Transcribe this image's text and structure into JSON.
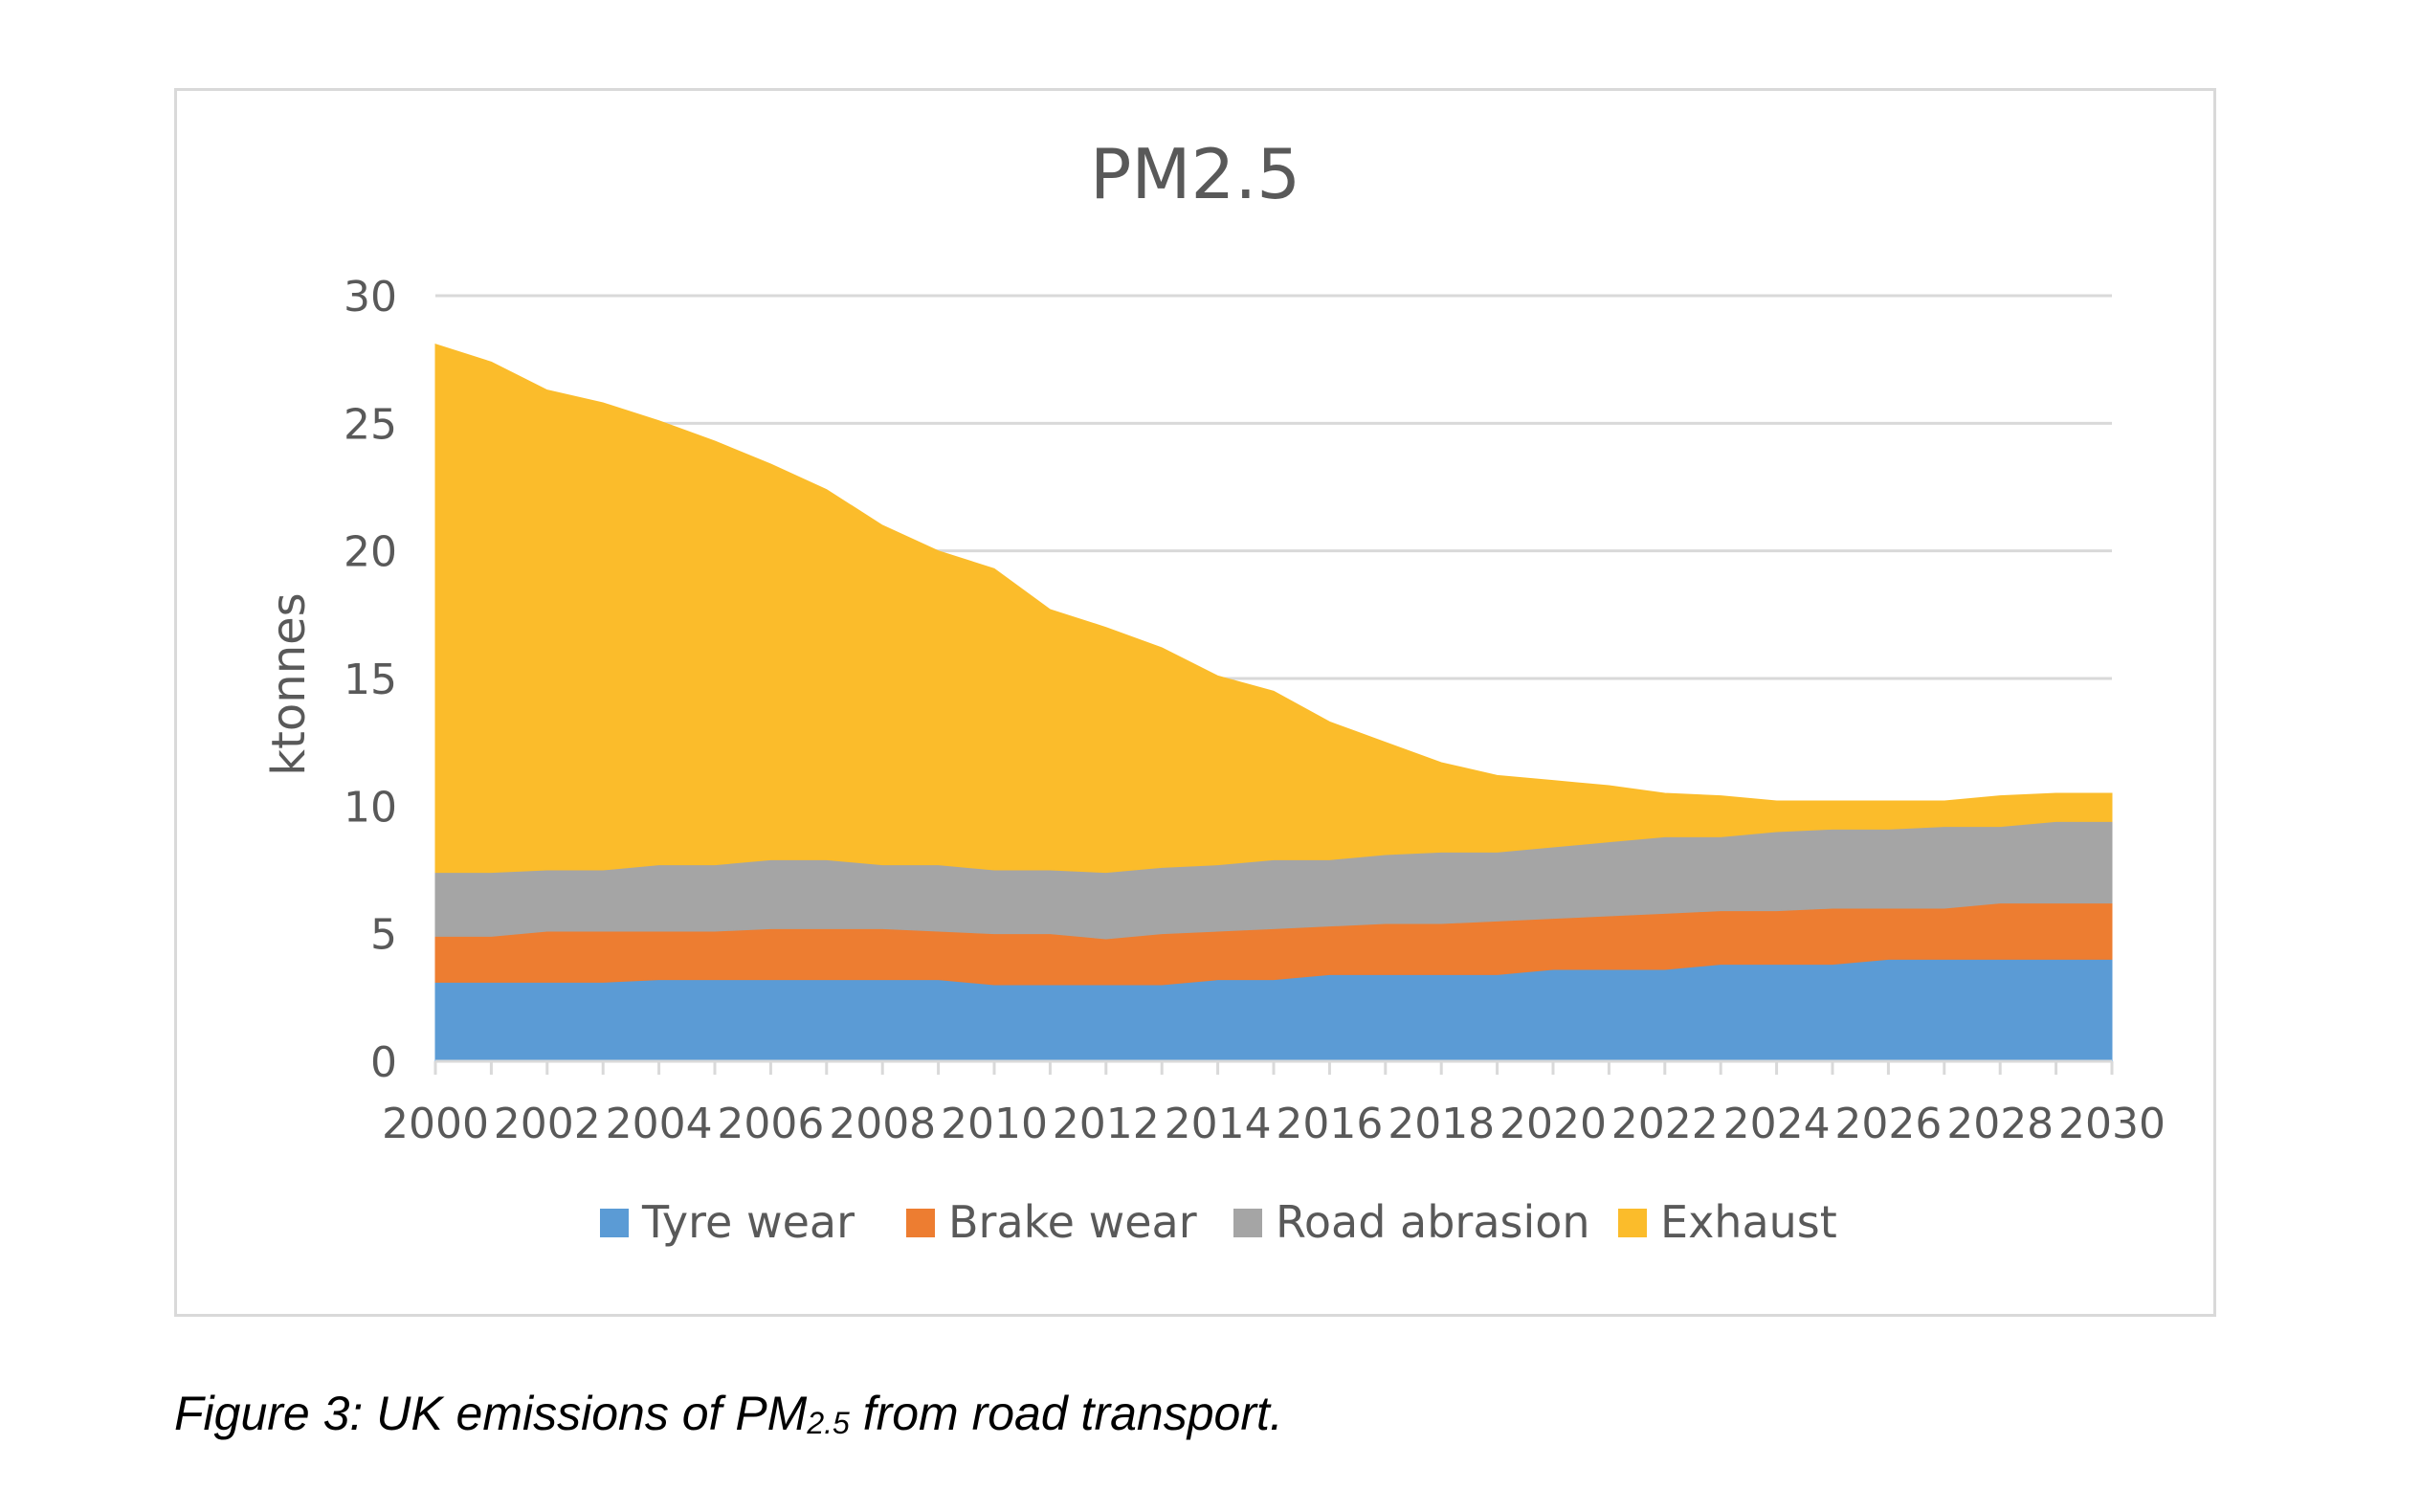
{
  "caption": {
    "prefix": "Figure 3: UK emissions of PM",
    "subscript": "2.5",
    "suffix": " from road transport."
  },
  "chart_data": {
    "type": "area",
    "stacked": true,
    "title": "PM2.5",
    "xlabel": "",
    "ylabel": "ktonnes",
    "ylim": [
      0,
      30
    ],
    "yticks": [
      0,
      5,
      10,
      15,
      20,
      25,
      30
    ],
    "xticks": [
      2000,
      2002,
      2004,
      2006,
      2008,
      2010,
      2012,
      2014,
      2016,
      2018,
      2020,
      2022,
      2024,
      2026,
      2028,
      2030
    ],
    "grid": true,
    "legend_position": "bottom",
    "x": [
      2000,
      2001,
      2002,
      2003,
      2004,
      2005,
      2006,
      2007,
      2008,
      2009,
      2010,
      2011,
      2012,
      2013,
      2014,
      2015,
      2016,
      2017,
      2018,
      2019,
      2020,
      2021,
      2022,
      2023,
      2024,
      2025,
      2026,
      2027,
      2028,
      2029,
      2030
    ],
    "series": [
      {
        "name": "Tyre wear",
        "color": "#5b9bd5",
        "values": [
          3.1,
          3.1,
          3.1,
          3.1,
          3.2,
          3.2,
          3.2,
          3.2,
          3.2,
          3.2,
          3.0,
          3.0,
          3.0,
          3.0,
          3.2,
          3.2,
          3.4,
          3.4,
          3.4,
          3.4,
          3.6,
          3.6,
          3.6,
          3.8,
          3.8,
          3.8,
          4.0,
          4.0,
          4.0,
          4.0,
          4.0
        ]
      },
      {
        "name": "Brake wear",
        "color": "#ed7d31",
        "values": [
          1.8,
          1.8,
          2.0,
          2.0,
          1.9,
          1.9,
          2.0,
          2.0,
          2.0,
          1.9,
          2.0,
          2.0,
          1.8,
          2.0,
          1.9,
          2.0,
          1.9,
          2.0,
          2.0,
          2.1,
          2.0,
          2.1,
          2.2,
          2.1,
          2.1,
          2.2,
          2.0,
          2.0,
          2.2,
          2.2,
          2.2
        ]
      },
      {
        "name": "Road abrasion",
        "color": "#a5a5a5",
        "values": [
          2.5,
          2.5,
          2.4,
          2.4,
          2.6,
          2.6,
          2.7,
          2.7,
          2.5,
          2.6,
          2.5,
          2.5,
          2.6,
          2.6,
          2.6,
          2.7,
          2.6,
          2.7,
          2.8,
          2.7,
          2.8,
          2.9,
          3.0,
          2.9,
          3.1,
          3.1,
          3.1,
          3.2,
          3.0,
          3.2,
          3.2
        ]
      },
      {
        "name": "Exhaust",
        "color": "#fbbc2b",
        "values": [
          20.7,
          20.0,
          18.8,
          18.3,
          17.4,
          16.6,
          15.5,
          14.5,
          13.3,
          12.3,
          11.8,
          10.2,
          9.6,
          8.6,
          7.4,
          6.6,
          5.4,
          4.4,
          3.5,
          3.0,
          2.6,
          2.2,
          1.7,
          1.6,
          1.2,
          1.1,
          1.1,
          1.0,
          1.2,
          1.1,
          1.1
        ]
      }
    ]
  }
}
